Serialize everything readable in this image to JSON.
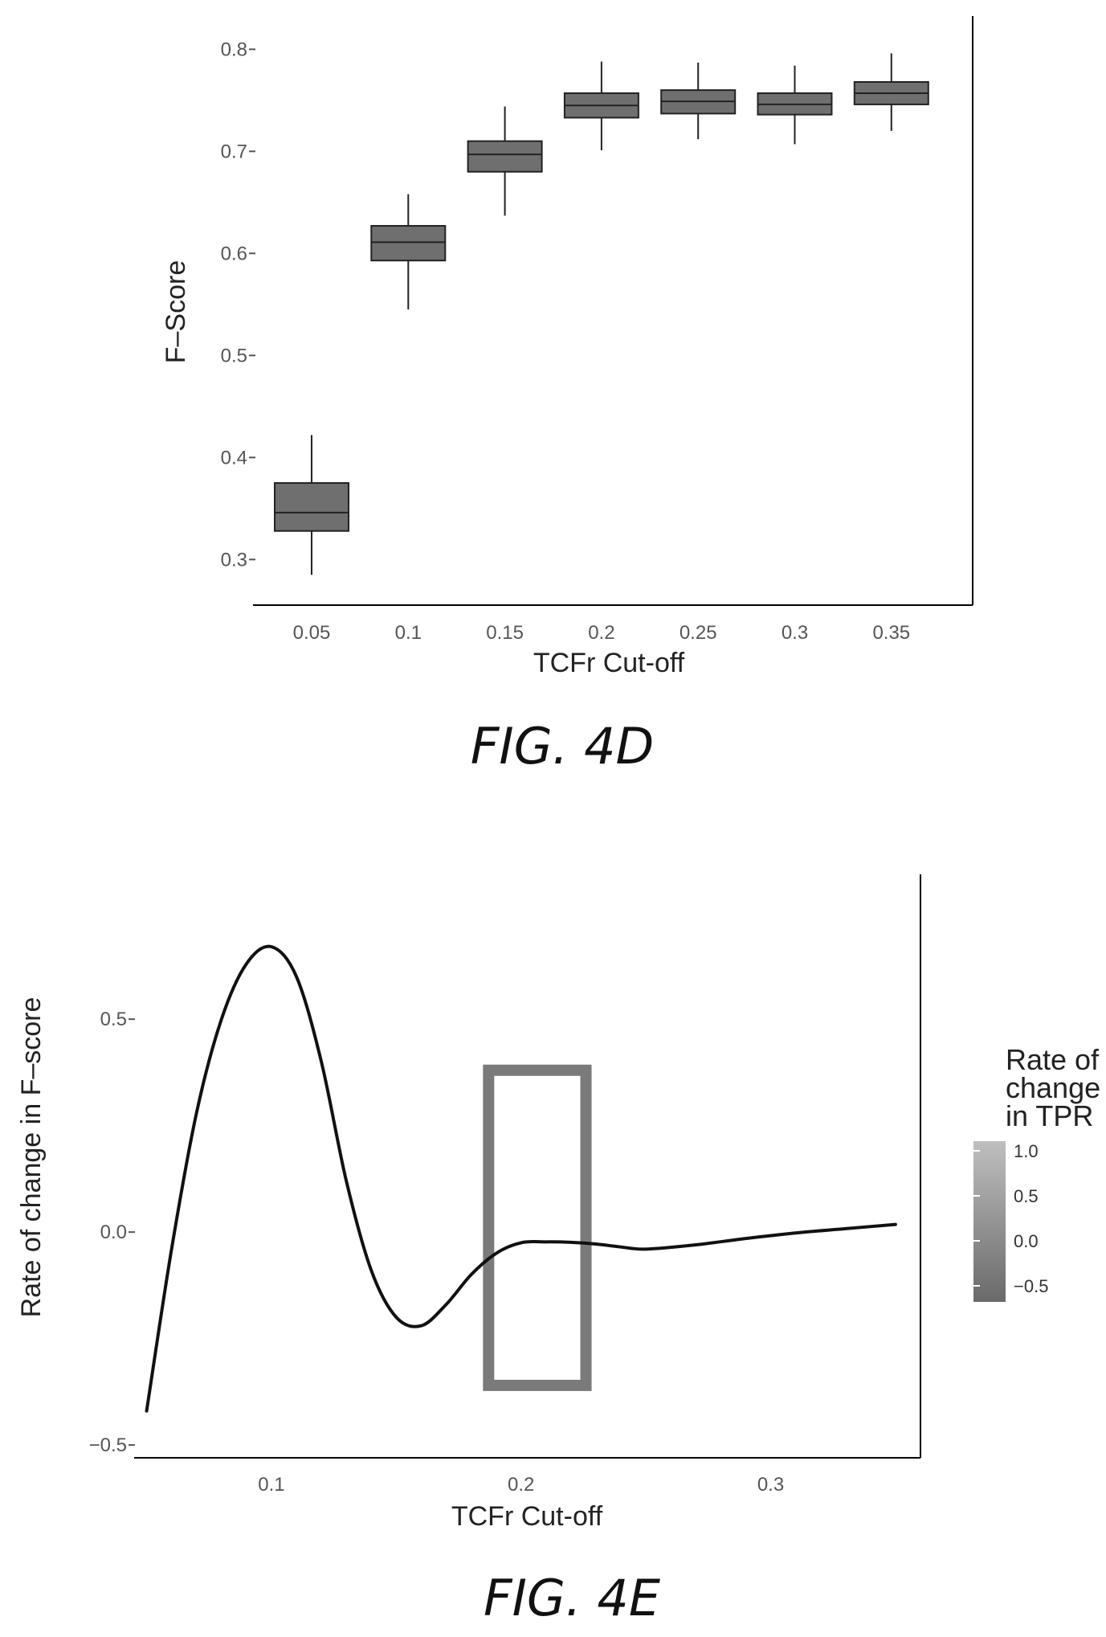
{
  "chart_data": [
    {
      "type": "box",
      "figure_label": "FIG. 4D",
      "xlabel": "TCFr Cut-off",
      "ylabel": "F–Score",
      "categories": [
        "0.05",
        "0.1",
        "0.15",
        "0.2",
        "0.25",
        "0.3",
        "0.35"
      ],
      "boxes": [
        {
          "x": "0.05",
          "min": 0.285,
          "q1": 0.328,
          "median": 0.346,
          "q3": 0.375,
          "max": 0.422
        },
        {
          "x": "0.1",
          "min": 0.545,
          "q1": 0.593,
          "median": 0.611,
          "q3": 0.627,
          "max": 0.658
        },
        {
          "x": "0.15",
          "min": 0.637,
          "q1": 0.68,
          "median": 0.697,
          "q3": 0.71,
          "max": 0.744
        },
        {
          "x": "0.2",
          "min": 0.701,
          "q1": 0.733,
          "median": 0.745,
          "q3": 0.757,
          "max": 0.788
        },
        {
          "x": "0.25",
          "min": 0.712,
          "q1": 0.737,
          "median": 0.749,
          "q3": 0.76,
          "max": 0.787
        },
        {
          "x": "0.3",
          "min": 0.707,
          "q1": 0.736,
          "median": 0.746,
          "q3": 0.757,
          "max": 0.784
        },
        {
          "x": "0.35",
          "min": 0.72,
          "q1": 0.746,
          "median": 0.757,
          "q3": 0.768,
          "max": 0.796
        }
      ],
      "y_ticks": [
        0.3,
        0.4,
        0.5,
        0.6,
        0.7,
        0.8
      ],
      "y_tick_labels": [
        "0.3",
        "0.4",
        "0.5",
        "0.6",
        "0.7",
        "0.8"
      ],
      "ylim": [
        0.275,
        0.805
      ],
      "box_color": "#6f6f6f",
      "grid": false
    },
    {
      "type": "line",
      "figure_label": "FIG. 4E",
      "xlabel": "TCFr Cut-off",
      "ylabel": "Rate of change in F–score",
      "x_ticks": [
        0.1,
        0.2,
        0.3
      ],
      "x_tick_labels": [
        "0.1",
        "0.2",
        "0.3"
      ],
      "y_ticks": [
        -0.5,
        0.0,
        0.5
      ],
      "y_tick_labels": [
        "−0.5",
        "0.0",
        "0.5"
      ],
      "xlim": [
        0.045,
        0.36
      ],
      "ylim": [
        -0.53,
        0.84
      ],
      "x": [
        0.05,
        0.06,
        0.07,
        0.08,
        0.09,
        0.1,
        0.11,
        0.12,
        0.13,
        0.14,
        0.15,
        0.16,
        0.17,
        0.18,
        0.19,
        0.2,
        0.21,
        0.22,
        0.23,
        0.24,
        0.25,
        0.27,
        0.29,
        0.31,
        0.33,
        0.35
      ],
      "values": [
        -0.42,
        -0.04,
        0.28,
        0.5,
        0.63,
        0.67,
        0.6,
        0.4,
        0.12,
        -0.09,
        -0.2,
        -0.22,
        -0.17,
        -0.1,
        -0.05,
        -0.025,
        -0.023,
        -0.024,
        -0.028,
        -0.035,
        -0.04,
        -0.03,
        -0.015,
        -0.002,
        0.008,
        0.018
      ],
      "highlight_box": {
        "x0": 0.187,
        "x1": 0.226,
        "y0": -0.36,
        "y1": 0.38,
        "color": "#7a7a7a"
      },
      "legend": {
        "title": [
          "Rate of",
          "change",
          "in TPR"
        ],
        "ticks": [
          "1.0",
          "0.5",
          "0.0",
          "−0.5"
        ],
        "position": "right",
        "colors": [
          "#bfbfbf",
          "#6a6a6a"
        ]
      },
      "line_color": "#111111",
      "grid": false
    }
  ]
}
